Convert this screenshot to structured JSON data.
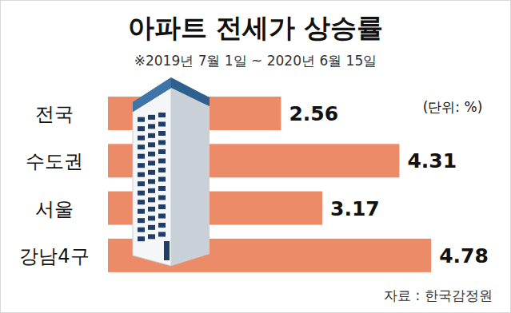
{
  "chart_data": {
    "type": "bar",
    "orientation": "horizontal",
    "title": "아파트 전세가 상승률",
    "subtitle": "※2019년 7월 1일 ~ 2020년 6월 15일",
    "unit_label": "(단위: %)",
    "source": "자료 : 한국감정원",
    "categories": [
      "전국",
      "수도권",
      "서울",
      "강남4구"
    ],
    "values": [
      2.56,
      4.31,
      3.17,
      4.78
    ],
    "color": "#ec8b68",
    "xlim": [
      0,
      5.5
    ],
    "data_labels": true,
    "tick_labels": "y",
    "grid": false
  }
}
